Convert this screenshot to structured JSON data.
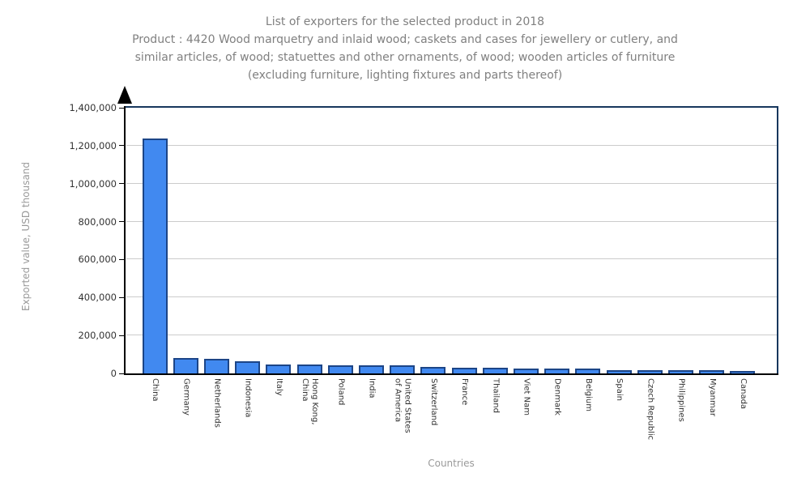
{
  "header": {
    "title": "List of exporters for the selected product in 2018",
    "product_lines": [
      "Product : 4420 Wood marquetry and inlaid wood; caskets and cases for jewellery or cutlery, and",
      "similar articles, of wood; statuettes and other ornaments, of wood; wooden articles of furniture",
      "(excluding furniture, lighting fixtures and parts thereof)"
    ]
  },
  "chart_data": {
    "type": "bar",
    "title": "List of exporters for the selected product in 2018",
    "xlabel": "Countries",
    "ylabel": "Exported value, USD thousand",
    "ylim": [
      0,
      1400000
    ],
    "ytick_step": 200000,
    "ytick_labels": [
      "0",
      "200,000",
      "400,000",
      "600,000",
      "800,000",
      "1,000,000",
      "1,200,000",
      "1,400,000"
    ],
    "grid": true,
    "legend": "none",
    "categories": [
      "China",
      "Germany",
      "Netherlands",
      "Indonesia",
      "Italy",
      "Hong Kong,\nChina",
      "Poland",
      "India",
      "United States\nof America",
      "Switzerland",
      "France",
      "Thailand",
      "Viet Nam",
      "Denmark",
      "Belgium",
      "Spain",
      "Czech Republic",
      "Philippines",
      "Myanmar",
      "Canada"
    ],
    "values": [
      1237000,
      82000,
      76000,
      65000,
      46000,
      45000,
      43000,
      42000,
      41000,
      36000,
      30000,
      29000,
      26000,
      25000,
      24000,
      19000,
      18000,
      17000,
      16500,
      15000
    ],
    "bar_color": "#4189f0",
    "bar_border_color": "#1c4587",
    "gridline_color": "#cccccc",
    "frame_color": "#17375d",
    "axis_color": "#000000",
    "text_color": "#808080"
  }
}
